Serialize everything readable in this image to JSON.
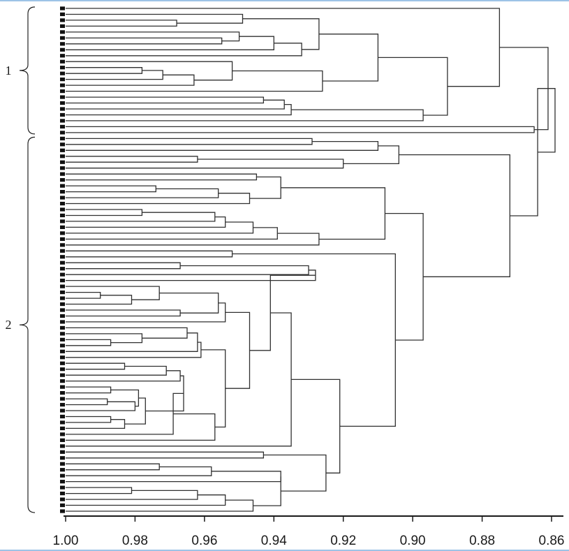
{
  "chart_data": {
    "type": "dendrogram",
    "orientation": "horizontal",
    "x_axis": {
      "reversed": true,
      "range": [
        1.0,
        0.86
      ],
      "ticks": [
        1.0,
        0.98,
        0.96,
        0.94,
        0.92,
        0.9,
        0.88,
        0.86
      ],
      "tick_labels": [
        "1.00",
        "0.98",
        "0.96",
        "0.94",
        "0.92",
        "0.90",
        "0.88",
        "0.86"
      ]
    },
    "leaf_count": 86,
    "groups": [
      {
        "label": "1",
        "first_leaf": 0,
        "last_leaf": 21
      },
      {
        "label": "2",
        "first_leaf": 22,
        "last_leaf": 85
      }
    ],
    "merges": [
      {
        "id": "A1",
        "a": 2,
        "b": 3,
        "sim": 0.968
      },
      {
        "id": "A2",
        "a": 1,
        "b": "A1",
        "sim": 0.949
      },
      {
        "id": "A3",
        "a": 5,
        "b": 6,
        "sim": 0.955
      },
      {
        "id": "A4",
        "a": 4,
        "b": "A3",
        "sim": 0.95
      },
      {
        "id": "A5",
        "a": "A4",
        "b": 7,
        "sim": 0.94
      },
      {
        "id": "A6",
        "a": "A5",
        "b": 8,
        "sim": 0.932
      },
      {
        "id": "A7",
        "a": "A2",
        "b": "A6",
        "sim": 0.927
      },
      {
        "id": "A8",
        "a": 10,
        "b": 11,
        "sim": 0.978
      },
      {
        "id": "A9",
        "a": "A8",
        "b": 12,
        "sim": 0.972
      },
      {
        "id": "A10",
        "a": "A9",
        "b": 13,
        "sim": 0.963
      },
      {
        "id": "A11",
        "a": 9,
        "b": "A10",
        "sim": 0.952
      },
      {
        "id": "A12",
        "a": "A11",
        "b": 14,
        "sim": 0.926
      },
      {
        "id": "A13",
        "a": "A7",
        "b": "A12",
        "sim": 0.91
      },
      {
        "id": "A14",
        "a": 15,
        "b": 16,
        "sim": 0.943
      },
      {
        "id": "A15",
        "a": "A14",
        "b": 17,
        "sim": 0.937
      },
      {
        "id": "A16",
        "a": "A15",
        "b": 18,
        "sim": 0.935
      },
      {
        "id": "A17",
        "a": "A16",
        "b": 19,
        "sim": 0.897
      },
      {
        "id": "A18",
        "a": "A13",
        "b": "A17",
        "sim": 0.89
      },
      {
        "id": "A19",
        "a": 0,
        "b": "A18",
        "sim": 0.875
      },
      {
        "id": "A20",
        "a": 20,
        "b": 21,
        "sim": 0.865
      },
      {
        "id": "A21",
        "a": "A19",
        "b": "A20",
        "sim": 0.861
      },
      {
        "id": "B1",
        "a": 22,
        "b": 23,
        "sim": 0.929
      },
      {
        "id": "B2",
        "a": "B1",
        "b": 24,
        "sim": 0.91
      },
      {
        "id": "B3",
        "a": 25,
        "b": 26,
        "sim": 0.962
      },
      {
        "id": "B4",
        "a": "B3",
        "b": 27,
        "sim": 0.92
      },
      {
        "id": "B5",
        "a": "B2",
        "b": "B4",
        "sim": 0.904
      },
      {
        "id": "B6",
        "a": 28,
        "b": 29,
        "sim": 0.945
      },
      {
        "id": "B7",
        "a": 30,
        "b": 31,
        "sim": 0.974
      },
      {
        "id": "B8",
        "a": "B7",
        "b": 32,
        "sim": 0.956
      },
      {
        "id": "B9",
        "a": "B8",
        "b": 33,
        "sim": 0.947
      },
      {
        "id": "B10",
        "a": "B6",
        "b": "B9",
        "sim": 0.938
      },
      {
        "id": "B11",
        "a": 34,
        "b": 35,
        "sim": 0.978
      },
      {
        "id": "B12",
        "a": "B11",
        "b": 36,
        "sim": 0.957
      },
      {
        "id": "B13",
        "a": "B12",
        "b": 37,
        "sim": 0.954
      },
      {
        "id": "B14",
        "a": "B13",
        "b": 38,
        "sim": 0.946
      },
      {
        "id": "B15",
        "a": "B14",
        "b": 39,
        "sim": 0.939
      },
      {
        "id": "B16",
        "a": "B15",
        "b": 40,
        "sim": 0.927
      },
      {
        "id": "B17",
        "a": "B10",
        "b": "B16",
        "sim": 0.908
      },
      {
        "id": "B18",
        "a": 41,
        "b": 42,
        "sim": 0.952
      },
      {
        "id": "B19",
        "a": 43,
        "b": 44,
        "sim": 0.967
      },
      {
        "id": "B20",
        "a": "B19",
        "b": 45,
        "sim": 0.93
      },
      {
        "id": "B21",
        "a": "B20",
        "b": 46,
        "sim": 0.928
      },
      {
        "id": "B22",
        "a": 48,
        "b": 49,
        "sim": 0.99
      },
      {
        "id": "B23",
        "a": "B22",
        "b": 50,
        "sim": 0.981
      },
      {
        "id": "B24",
        "a": 47,
        "b": "B23",
        "sim": 0.973
      },
      {
        "id": "B25",
        "a": 51,
        "b": 52,
        "sim": 0.967
      },
      {
        "id": "B26",
        "a": "B24",
        "b": "B25",
        "sim": 0.956
      },
      {
        "id": "B27",
        "a": "B26",
        "b": 53,
        "sim": 0.954
      },
      {
        "id": "B28",
        "a": 56,
        "b": 57,
        "sim": 0.987
      },
      {
        "id": "B29",
        "a": 55,
        "b": "B28",
        "sim": 0.978
      },
      {
        "id": "B30",
        "a": 54,
        "b": "B29",
        "sim": 0.965
      },
      {
        "id": "B31",
        "a": "B30",
        "b": 58,
        "sim": 0.962
      },
      {
        "id": "B32",
        "a": "B31",
        "b": 59,
        "sim": 0.961
      },
      {
        "id": "B33",
        "a": 60,
        "b": 61,
        "sim": 0.983
      },
      {
        "id": "B34",
        "a": "B33",
        "b": 62,
        "sim": 0.971
      },
      {
        "id": "B35",
        "a": "B34",
        "b": 63,
        "sim": 0.967
      },
      {
        "id": "B36",
        "a": 64,
        "b": 65,
        "sim": 0.987
      },
      {
        "id": "B37",
        "a": 66,
        "b": 67,
        "sim": 0.988
      },
      {
        "id": "B38",
        "a": "B37",
        "b": 68,
        "sim": 0.98
      },
      {
        "id": "B39",
        "a": "B36",
        "b": "B38",
        "sim": 0.979
      },
      {
        "id": "B40",
        "a": 69,
        "b": 70,
        "sim": 0.987
      },
      {
        "id": "B41",
        "a": "B40",
        "b": 71,
        "sim": 0.983
      },
      {
        "id": "B42",
        "a": "B39",
        "b": "B41",
        "sim": 0.977
      },
      {
        "id": "B43",
        "a": "B35",
        "b": "B42",
        "sim": 0.966
      },
      {
        "id": "B44",
        "a": "B43",
        "b": 72,
        "sim": 0.969
      },
      {
        "id": "B45",
        "a": "B44",
        "b": 73,
        "sim": 0.957
      },
      {
        "id": "B46",
        "a": "B32",
        "b": "B45",
        "sim": 0.954
      },
      {
        "id": "B47",
        "a": "B27",
        "b": "B46",
        "sim": 0.947
      },
      {
        "id": "B48",
        "a": "B21",
        "b": "B47",
        "sim": 0.941
      },
      {
        "id": "B49",
        "a": "B48",
        "b": 74,
        "sim": 0.935
      },
      {
        "id": "B50",
        "a": 75,
        "b": 76,
        "sim": 0.943
      },
      {
        "id": "B51",
        "a": 77,
        "b": 78,
        "sim": 0.973
      },
      {
        "id": "B52",
        "a": "B51",
        "b": 79,
        "sim": 0.958
      },
      {
        "id": "B53",
        "a": "B52",
        "b": 80,
        "sim": 0.938
      },
      {
        "id": "B54",
        "a": 81,
        "b": 82,
        "sim": 0.981
      },
      {
        "id": "B55",
        "a": "B54",
        "b": 83,
        "sim": 0.962
      },
      {
        "id": "B56",
        "a": "B55",
        "b": 84,
        "sim": 0.954
      },
      {
        "id": "B57",
        "a": "B56",
        "b": 85,
        "sim": 0.946
      },
      {
        "id": "B58",
        "a": "B53",
        "b": "B57",
        "sim": 0.938
      },
      {
        "id": "B59",
        "a": "B50",
        "b": "B58",
        "sim": 0.925
      },
      {
        "id": "B60",
        "a": "B49",
        "b": "B59",
        "sim": 0.921
      },
      {
        "id": "B61",
        "a": "B18",
        "b": "B60",
        "sim": 0.905
      },
      {
        "id": "B62",
        "a": "B17",
        "b": "B61",
        "sim": 0.897
      },
      {
        "id": "B63",
        "a": "B5",
        "b": "B62",
        "sim": 0.872
      },
      {
        "id": "R1",
        "a": "B63",
        "b": "A21",
        "sim": 0.864
      },
      {
        "id": "ROOT",
        "a": "R1",
        "b": "A21",
        "sim": 0.859
      }
    ],
    "grid": false,
    "legend": "none"
  }
}
